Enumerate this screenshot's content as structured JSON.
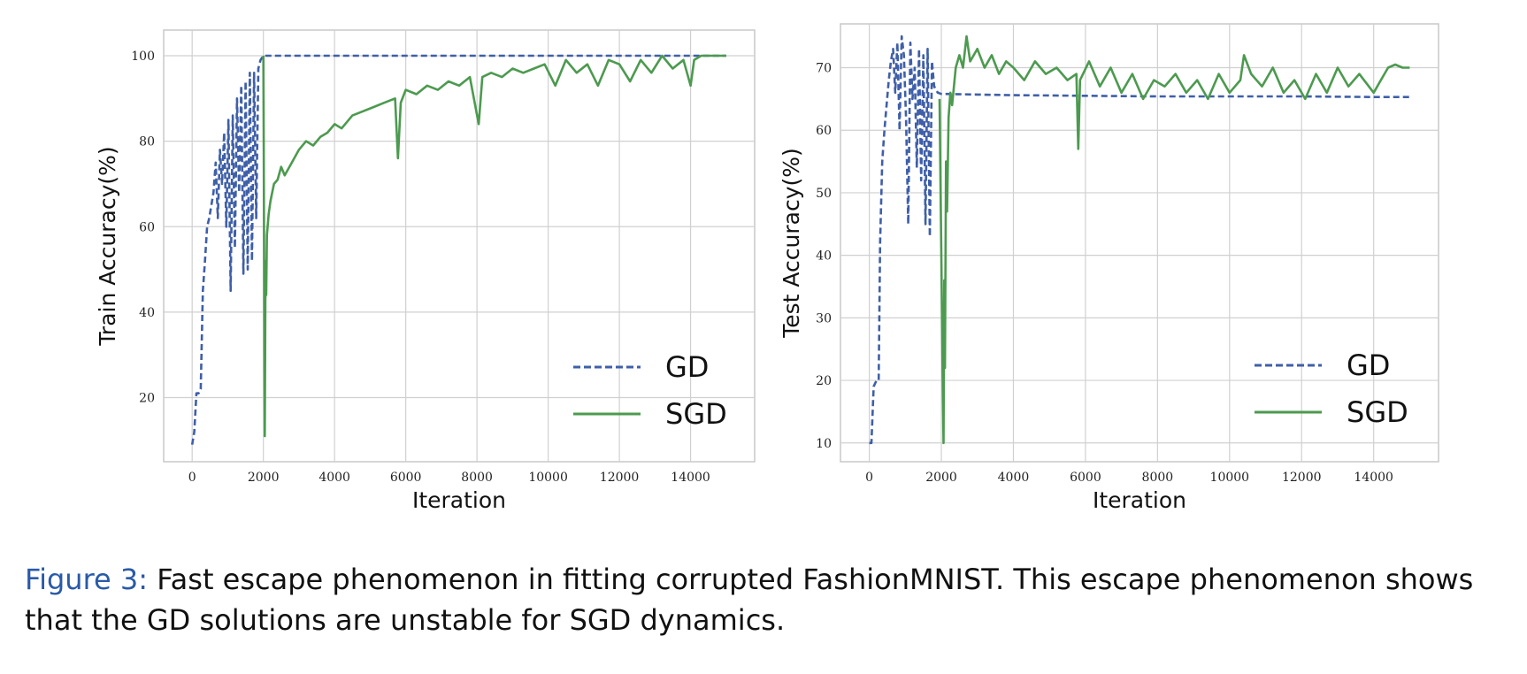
{
  "chart_data": [
    {
      "type": "line",
      "ylabel": "Train Accuracy(%)",
      "xlabel": "Iteration",
      "xlim": [
        -800,
        15800
      ],
      "ylim": [
        5,
        106
      ],
      "xticks": [
        "0",
        "2000",
        "4000",
        "6000",
        "8000",
        "10000",
        "12000",
        "14000"
      ],
      "yticks": [
        "20",
        "40",
        "60",
        "80",
        "100"
      ],
      "grid": true,
      "legend_position": "lower-right",
      "series": [
        {
          "name": "GD",
          "style": "dashed",
          "color": "#3f5fa8",
          "x": [
            0,
            60,
            120,
            180,
            240,
            300,
            360,
            420,
            480,
            540,
            600,
            660,
            720,
            780,
            840,
            900,
            960,
            1020,
            1080,
            1140,
            1200,
            1260,
            1320,
            1380,
            1440,
            1500,
            1560,
            1620,
            1680,
            1740,
            1800,
            1860,
            1920,
            2000,
            2050,
            2100,
            3000,
            6000,
            9000,
            12000,
            15000
          ],
          "y": [
            9,
            12,
            21,
            21,
            22,
            45,
            52,
            60,
            62,
            65,
            68,
            75,
            62,
            78,
            70,
            82,
            60,
            85,
            45,
            86,
            55,
            90,
            68,
            93,
            49,
            94,
            50,
            96,
            52,
            96,
            62,
            97,
            99,
            100,
            100,
            100,
            100,
            100,
            100,
            100,
            100
          ]
        },
        {
          "name": "SGD",
          "style": "solid",
          "color": "#4c9a4f",
          "x": [
            2000,
            2010,
            2020,
            2030,
            2040,
            2050,
            2060,
            2080,
            2100,
            2150,
            2200,
            2300,
            2400,
            2500,
            2600,
            2800,
            3000,
            3200,
            3400,
            3600,
            3800,
            4000,
            4200,
            4500,
            4800,
            5100,
            5400,
            5700,
            5780,
            5860,
            6000,
            6300,
            6600,
            6900,
            7200,
            7500,
            7800,
            8050,
            8150,
            8400,
            8700,
            9000,
            9300,
            9600,
            9900,
            10200,
            10500,
            10800,
            11100,
            11400,
            11700,
            12000,
            12300,
            12600,
            12900,
            13200,
            13500,
            13800,
            14000,
            14100,
            14300,
            14600,
            15000
          ],
          "y": [
            100,
            80,
            55,
            27,
            11,
            30,
            52,
            44,
            58,
            63,
            66,
            70,
            71,
            74,
            72,
            75,
            78,
            80,
            79,
            81,
            82,
            84,
            83,
            86,
            87,
            88,
            89,
            90,
            76,
            89,
            92,
            91,
            93,
            92,
            94,
            93,
            95,
            84,
            95,
            96,
            95,
            97,
            96,
            97,
            98,
            93,
            99,
            96,
            98,
            93,
            99,
            98,
            94,
            99,
            96,
            100,
            97,
            99,
            93,
            99,
            100,
            100,
            100
          ]
        }
      ]
    },
    {
      "type": "line",
      "ylabel": "Test Accuracy(%)",
      "xlabel": "Iteration",
      "xlim": [
        -800,
        15800
      ],
      "ylim": [
        7,
        77
      ],
      "xticks": [
        "0",
        "2000",
        "4000",
        "6000",
        "8000",
        "10000",
        "12000",
        "14000"
      ],
      "yticks": [
        "10",
        "20",
        "30",
        "40",
        "50",
        "60",
        "70"
      ],
      "grid": true,
      "legend_position": "lower-right",
      "series": [
        {
          "name": "GD",
          "style": "dashed",
          "color": "#3f5fa8",
          "x": [
            0,
            60,
            120,
            200,
            260,
            300,
            360,
            420,
            480,
            540,
            600,
            660,
            720,
            780,
            840,
            900,
            960,
            1020,
            1080,
            1140,
            1200,
            1260,
            1320,
            1380,
            1440,
            1500,
            1560,
            1620,
            1680,
            1740,
            1800,
            1900,
            2000,
            2100,
            3000,
            4000,
            6000,
            8000,
            10000,
            12000,
            14000,
            15000
          ],
          "y": [
            10,
            10,
            19,
            20,
            20,
            42,
            55,
            60,
            64,
            68,
            71,
            73,
            66,
            74,
            60,
            75,
            72,
            62,
            45,
            74,
            65,
            70,
            54,
            73,
            52,
            72,
            45,
            73,
            43,
            71,
            67,
            66,
            65.8,
            65.8,
            65.7,
            65.6,
            65.5,
            65.4,
            65.4,
            65.4,
            65.3,
            65.3
          ]
        },
        {
          "name": "SGD",
          "style": "solid",
          "color": "#4c9a4f",
          "x": [
            1950,
            2000,
            2030,
            2060,
            2080,
            2100,
            2130,
            2160,
            2200,
            2250,
            2300,
            2400,
            2500,
            2600,
            2700,
            2800,
            3000,
            3200,
            3400,
            3600,
            3800,
            4000,
            4300,
            4600,
            4900,
            5200,
            5500,
            5750,
            5800,
            5850,
            6100,
            6400,
            6700,
            7000,
            7300,
            7600,
            7900,
            8200,
            8500,
            8800,
            9100,
            9400,
            9700,
            10000,
            10300,
            10400,
            10600,
            10900,
            11200,
            11500,
            11800,
            12100,
            12400,
            12700,
            13000,
            13300,
            13600,
            14000,
            14200,
            14400,
            14600,
            14800,
            15000
          ],
          "y": [
            65,
            40,
            24,
            10,
            36,
            22,
            55,
            47,
            62,
            66,
            64,
            70,
            72,
            70,
            75,
            71,
            73,
            70,
            72,
            69,
            71,
            70,
            68,
            71,
            69,
            70,
            68,
            69,
            57,
            68,
            71,
            67,
            70,
            66,
            69,
            65,
            68,
            67,
            69,
            66,
            68,
            65,
            69,
            66,
            68,
            72,
            69,
            67,
            70,
            66,
            68,
            65,
            69,
            66,
            70,
            67,
            69,
            66,
            68,
            70,
            70.5,
            70,
            70
          ]
        }
      ]
    }
  ],
  "caption": {
    "label": "Figure 3:",
    "text": "Fast escape phenomenon in fitting corrupted FashionMNIST. This escape phenomenon shows that the GD solutions are unstable for SGD dynamics."
  }
}
